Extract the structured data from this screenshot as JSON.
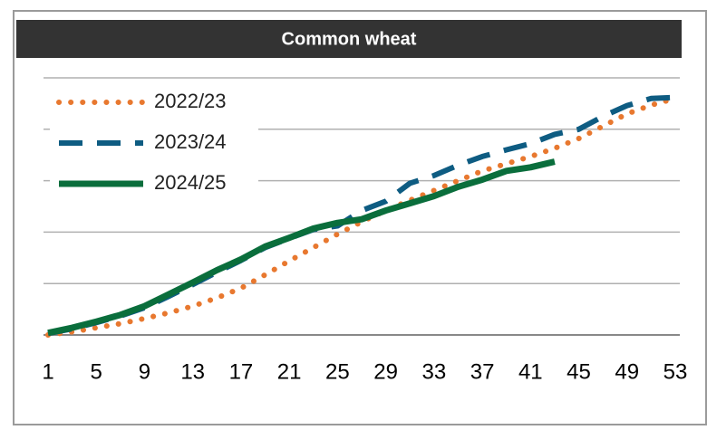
{
  "chart_data": {
    "type": "line",
    "title": "Common wheat",
    "x": [
      1,
      3,
      5,
      7,
      9,
      11,
      13,
      15,
      17,
      19,
      21,
      23,
      25,
      27,
      29,
      31,
      33,
      35,
      37,
      39,
      41,
      43,
      45,
      47,
      49,
      51,
      53
    ],
    "xlim": [
      1,
      53
    ],
    "xticks": [
      1,
      5,
      9,
      13,
      17,
      21,
      25,
      29,
      33,
      37,
      41,
      45,
      49,
      53
    ],
    "ylim": [
      0,
      5
    ],
    "yticks": [
      0,
      1,
      2,
      3,
      4,
      5
    ],
    "grid": true,
    "legend": "upper left",
    "series": [
      {
        "name": "2022/23",
        "color": "#e8782f",
        "style": "dotted",
        "values": [
          0.0,
          0.06,
          0.14,
          0.22,
          0.32,
          0.43,
          0.56,
          0.72,
          0.91,
          1.17,
          1.44,
          1.7,
          1.96,
          2.2,
          2.42,
          2.62,
          2.81,
          3.0,
          3.19,
          3.33,
          3.47,
          3.63,
          3.82,
          4.06,
          4.3,
          4.47,
          4.6
        ]
      },
      {
        "name": "2023/24",
        "color": "#0e5c82",
        "style": "dashed",
        "values": [
          0.03,
          0.12,
          0.24,
          0.37,
          0.53,
          0.75,
          0.98,
          1.22,
          1.45,
          1.7,
          1.88,
          2.05,
          2.12,
          2.42,
          2.6,
          2.95,
          3.1,
          3.3,
          3.47,
          3.6,
          3.72,
          3.9,
          4.0,
          4.25,
          4.46,
          4.6,
          4.62
        ]
      },
      {
        "name": "2024/25",
        "color": "#0a6e3c",
        "style": "solid",
        "values": [
          0.04,
          0.14,
          0.26,
          0.39,
          0.56,
          0.79,
          1.02,
          1.26,
          1.47,
          1.72,
          1.89,
          2.07,
          2.18,
          2.25,
          2.42,
          2.56,
          2.7,
          2.88,
          3.02,
          3.19,
          3.26,
          3.37,
          null,
          null,
          null,
          null,
          null
        ]
      }
    ]
  }
}
